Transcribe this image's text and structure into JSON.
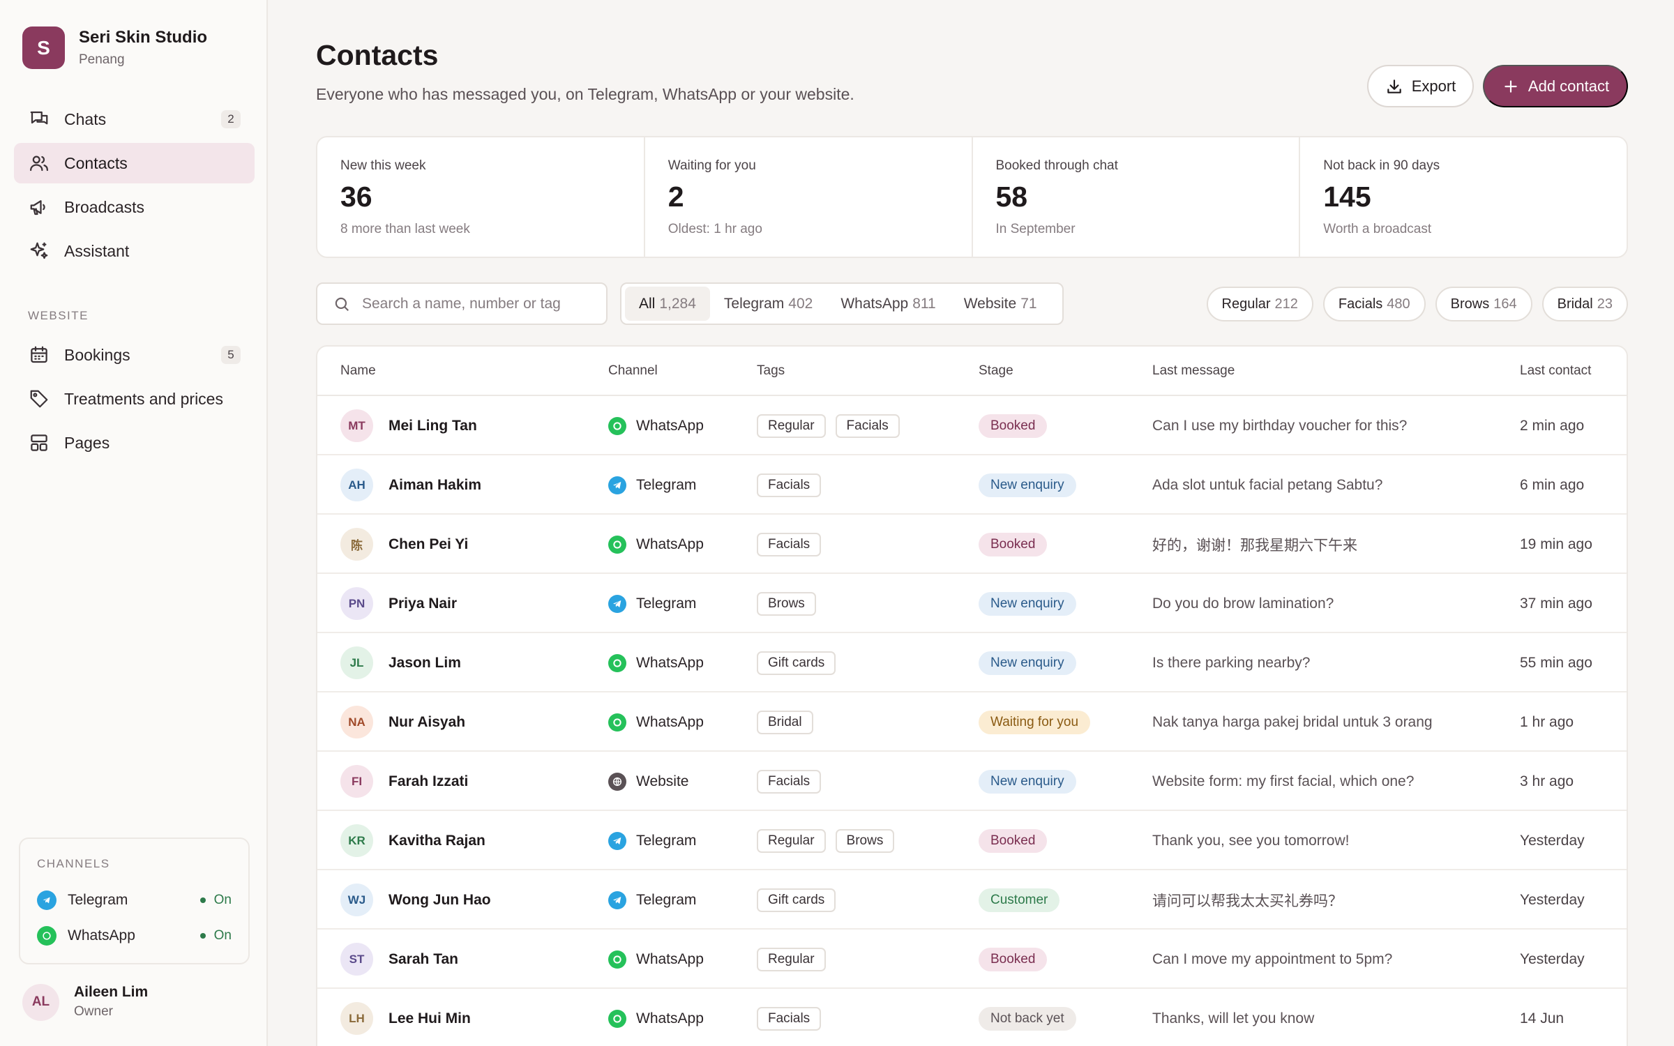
{
  "brand": {
    "initial": "S",
    "name": "Seri Skin Studio",
    "location": "Penang"
  },
  "nav": [
    {
      "label": "Chats",
      "badge": "2",
      "icon": "chat-bubbles-icon",
      "active": false
    },
    {
      "label": "Contacts",
      "badge": "",
      "icon": "people-icon",
      "active": true
    },
    {
      "label": "Broadcasts",
      "badge": "",
      "icon": "megaphone-icon",
      "active": false
    },
    {
      "label": "Assistant",
      "badge": "",
      "icon": "sparkle-icon",
      "active": false
    }
  ],
  "website_section": {
    "label": "WEBSITE",
    "items": [
      {
        "label": "Bookings",
        "badge": "5",
        "icon": "calendar-icon"
      },
      {
        "label": "Treatments and prices",
        "badge": "",
        "icon": "tag-icon"
      },
      {
        "label": "Pages",
        "badge": "",
        "icon": "layout-icon"
      }
    ]
  },
  "channels": {
    "title": "CHANNELS",
    "items": [
      {
        "name": "Telegram",
        "status": "On",
        "icon": "telegram-icon"
      },
      {
        "name": "WhatsApp",
        "status": "On",
        "icon": "whatsapp-icon"
      }
    ]
  },
  "user": {
    "initials": "AL",
    "name": "Aileen Lim",
    "role": "Owner"
  },
  "page": {
    "title": "Contacts",
    "subtitle": "Everyone who has messaged you, on Telegram, WhatsApp or your website.",
    "export_label": "Export",
    "add_label": "Add contact"
  },
  "stats": [
    {
      "label": "New this week",
      "value": "36",
      "note": "8 more than last week"
    },
    {
      "label": "Waiting for you",
      "value": "2",
      "note": "Oldest: 1 hr ago"
    },
    {
      "label": "Booked through chat",
      "value": "58",
      "note": "In September"
    },
    {
      "label": "Not back in 90 days",
      "value": "145",
      "note": "Worth a broadcast"
    }
  ],
  "search": {
    "placeholder": "Search a name, number or tag",
    "value": ""
  },
  "segments": [
    {
      "label": "All",
      "count": "1,284",
      "active": true
    },
    {
      "label": "Telegram",
      "count": "402",
      "active": false
    },
    {
      "label": "WhatsApp",
      "count": "811",
      "active": false
    },
    {
      "label": "Website",
      "count": "71",
      "active": false
    }
  ],
  "tag_filters": [
    {
      "label": "Regular",
      "count": "212"
    },
    {
      "label": "Facials",
      "count": "480"
    },
    {
      "label": "Brows",
      "count": "164"
    },
    {
      "label": "Bridal",
      "count": "23"
    }
  ],
  "table": {
    "headers": {
      "name": "Name",
      "channel": "Channel",
      "tags": "Tags",
      "stage": "Stage",
      "last_message": "Last message",
      "last_contact": "Last contact"
    },
    "rows": [
      {
        "initials": "MT",
        "name": "Mei Ling Tan",
        "channel": "WhatsApp",
        "tags": [
          "Regular",
          "Facials"
        ],
        "stage": "Booked",
        "message": "Can I use my birthday voucher for this?",
        "time": "2 min ago",
        "avatar_bg": "#f5e3ea",
        "avatar_fg": "#8a3a5e"
      },
      {
        "initials": "AH",
        "name": "Aiman Hakim",
        "channel": "Telegram",
        "tags": [
          "Facials"
        ],
        "stage": "New enquiry",
        "message": "Ada slot untuk facial petang Sabtu?",
        "time": "6 min ago",
        "avatar_bg": "#e4eef8",
        "avatar_fg": "#2a5a8a"
      },
      {
        "initials": "陈",
        "name": "Chen Pei Yi",
        "channel": "WhatsApp",
        "tags": [
          "Facials"
        ],
        "stage": "Booked",
        "message": "好的，谢谢！那我星期六下午来",
        "time": "19 min ago",
        "avatar_bg": "#f3ebe0",
        "avatar_fg": "#8a6a3a"
      },
      {
        "initials": "PN",
        "name": "Priya Nair",
        "channel": "Telegram",
        "tags": [
          "Brows"
        ],
        "stage": "New enquiry",
        "message": "Do you do brow lamination?",
        "time": "37 min ago",
        "avatar_bg": "#ebe6f5",
        "avatar_fg": "#5a4a8a"
      },
      {
        "initials": "JL",
        "name": "Jason Lim",
        "channel": "WhatsApp",
        "tags": [
          "Gift cards"
        ],
        "stage": "New enquiry",
        "message": "Is there parking nearby?",
        "time": "55 min ago",
        "avatar_bg": "#e3f2e7",
        "avatar_fg": "#2d7a4a"
      },
      {
        "initials": "NA",
        "name": "Nur Aisyah",
        "channel": "WhatsApp",
        "tags": [
          "Bridal"
        ],
        "stage": "Waiting for you",
        "message": "Nak tanya harga pakej bridal untuk 3 orang",
        "time": "1 hr ago",
        "avatar_bg": "#fbe6dc",
        "avatar_fg": "#a04a2a"
      },
      {
        "initials": "FI",
        "name": "Farah Izzati",
        "channel": "Website",
        "tags": [
          "Facials"
        ],
        "stage": "New enquiry",
        "message": "Website form: my first facial, which one?",
        "time": "3 hr ago",
        "avatar_bg": "#f5e3ea",
        "avatar_fg": "#8a3a5e"
      },
      {
        "initials": "KR",
        "name": "Kavitha Rajan",
        "channel": "Telegram",
        "tags": [
          "Regular",
          "Brows"
        ],
        "stage": "Booked",
        "message": "Thank you, see you tomorrow!",
        "time": "Yesterday",
        "avatar_bg": "#e3f2e7",
        "avatar_fg": "#2d7a4a"
      },
      {
        "initials": "WJ",
        "name": "Wong Jun Hao",
        "channel": "Telegram",
        "tags": [
          "Gift cards"
        ],
        "stage": "Customer",
        "message": "请问可以帮我太太买礼券吗？",
        "time": "Yesterday",
        "avatar_bg": "#e4eef8",
        "avatar_fg": "#2a5a8a"
      },
      {
        "initials": "ST",
        "name": "Sarah Tan",
        "channel": "WhatsApp",
        "tags": [
          "Regular"
        ],
        "stage": "Booked",
        "message": "Can I move my appointment to 5pm?",
        "time": "Yesterday",
        "avatar_bg": "#ebe6f5",
        "avatar_fg": "#5a4a8a"
      },
      {
        "initials": "LH",
        "name": "Lee Hui Min",
        "channel": "WhatsApp",
        "tags": [
          "Facials"
        ],
        "stage": "Not back yet",
        "message": "Thanks, will let you know",
        "time": "14 Jun",
        "avatar_bg": "#f3ebe0",
        "avatar_fg": "#8a6a3a"
      }
    ]
  },
  "colors": {
    "accent": "#8a3a5e",
    "whatsapp": "#25c15a",
    "telegram": "#2aa3e0",
    "website": "#5a5155"
  }
}
